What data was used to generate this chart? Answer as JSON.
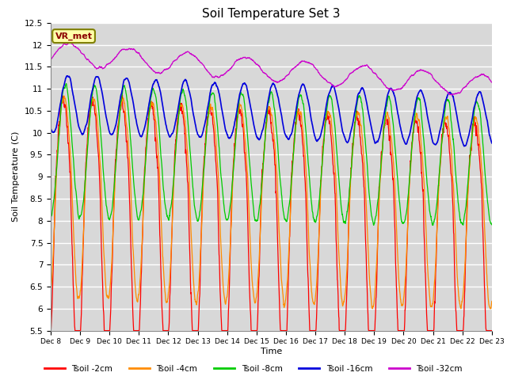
{
  "title": "Soil Temperature Set 3",
  "xlabel": "Time",
  "ylabel": "Soil Temperature (C)",
  "ylim": [
    5.5,
    12.5
  ],
  "yticks": [
    5.5,
    6.0,
    6.5,
    7.0,
    7.5,
    8.0,
    8.5,
    9.0,
    9.5,
    10.0,
    10.5,
    11.0,
    11.5,
    12.0,
    12.5
  ],
  "xtick_labels": [
    "Dec 8",
    "Dec 9",
    "Dec 10",
    "Dec 11",
    "Dec 12",
    "Dec 13",
    "Dec 14",
    "Dec 15",
    "Dec 16",
    "Dec 17",
    "Dec 18",
    "Dec 19",
    "Dec 20",
    "Dec 21",
    "Dec 22",
    "Dec 23"
  ],
  "plot_bg_color": "#d8d8d8",
  "grid_color": "#ffffff",
  "legend_label": "VR_met",
  "series_colors": [
    "#ff0000",
    "#ff8c00",
    "#00cc00",
    "#0000dd",
    "#cc00cc"
  ],
  "series_labels": [
    "Tsoil -2cm",
    "Tsoil -4cm",
    "Tsoil -8cm",
    "Tsoil -16cm",
    "Tsoil -32cm"
  ],
  "n_days": 15,
  "n_points_per_day": 144
}
